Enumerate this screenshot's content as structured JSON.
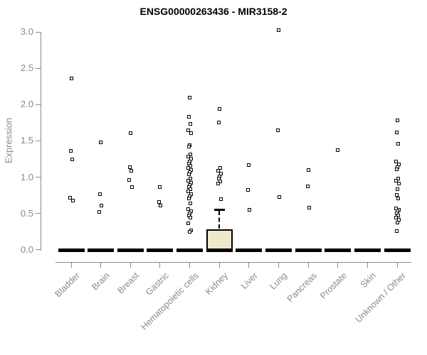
{
  "chart_data": {
    "type": "scatter",
    "subtype": "strip-plot-with-boxplot",
    "title": "ENSG00000263436 - MIR3158-2",
    "xlabel": "",
    "ylabel": "Expression",
    "ylim": [
      0,
      3.1
    ],
    "yticks": [
      0.0,
      0.5,
      1.0,
      1.5,
      2.0,
      2.5,
      3.0
    ],
    "ytick_labels": [
      "0.0",
      "0.5",
      "1.0",
      "1.5",
      "2.0",
      "2.5",
      "3.0"
    ],
    "grid": false,
    "legend": null,
    "categories": [
      "Bladder",
      "Brain",
      "Breast",
      "Gastric",
      "Hematopoietic cells",
      "Kidney",
      "Liver",
      "Lung",
      "Pancreas",
      "Prostate",
      "Skin",
      "Unknown / Other"
    ],
    "series": [
      {
        "category": "Bladder",
        "median": 0.0,
        "points": [
          2.36,
          1.36,
          1.24,
          0.72,
          0.68
        ]
      },
      {
        "category": "Brain",
        "median": 0.0,
        "points": [
          1.48,
          0.77,
          0.61,
          0.52
        ]
      },
      {
        "category": "Breast",
        "median": 0.0,
        "points": [
          1.61,
          1.14,
          1.09,
          0.96,
          0.86
        ]
      },
      {
        "category": "Gastric",
        "median": 0.0,
        "points": [
          0.86,
          0.66,
          0.61
        ]
      },
      {
        "category": "Hematopoietic cells",
        "median": 0.0,
        "points": [
          2.1,
          1.83,
          1.73,
          1.65,
          1.61,
          1.44,
          1.42,
          1.31,
          1.28,
          1.25,
          1.22,
          1.19,
          1.16,
          1.13,
          1.1,
          1.07,
          1.04,
          0.98,
          0.95,
          0.92,
          0.89,
          0.86,
          0.83,
          0.8,
          0.77,
          0.74,
          0.71,
          0.64,
          0.56,
          0.53,
          0.5,
          0.47,
          0.44,
          0.36,
          0.27,
          0.25
        ]
      },
      {
        "category": "Kidney",
        "median": 0.0,
        "box": {
          "q1": 0.0,
          "q3": 0.28,
          "whisker_high": 0.55,
          "whisker_low": 0.0
        },
        "points": [
          1.94,
          1.75,
          1.13,
          1.09,
          1.05,
          1.01,
          0.98,
          0.94,
          0.91,
          0.7
        ]
      },
      {
        "category": "Liver",
        "median": 0.0,
        "points": [
          1.17,
          0.82,
          0.55
        ]
      },
      {
        "category": "Lung",
        "median": 0.0,
        "points": [
          3.03,
          1.65,
          0.73
        ]
      },
      {
        "category": "Pancreas",
        "median": 0.0,
        "points": [
          1.1,
          0.87,
          0.58
        ]
      },
      {
        "category": "Prostate",
        "median": 0.0,
        "points": [
          1.37
        ]
      },
      {
        "category": "Skin",
        "median": 0.0,
        "points": []
      },
      {
        "category": "Unknown / Other",
        "median": 0.0,
        "points": [
          1.78,
          1.62,
          1.46,
          1.22,
          1.18,
          1.14,
          1.11,
          0.98,
          0.95,
          0.91,
          0.83,
          0.76,
          0.71,
          0.57,
          0.55,
          0.53,
          0.5,
          0.47,
          0.44,
          0.41,
          0.37,
          0.26
        ]
      }
    ],
    "colors": {
      "point_border": "#000000",
      "point_fill": "#ffffff",
      "box_fill": "#eee8cd",
      "box_border": "#000000",
      "median": "#000000",
      "axis": "#8a8a8a",
      "axis_text": "#8a8a8a",
      "title_text": "#000000",
      "background": "#ffffff"
    }
  }
}
